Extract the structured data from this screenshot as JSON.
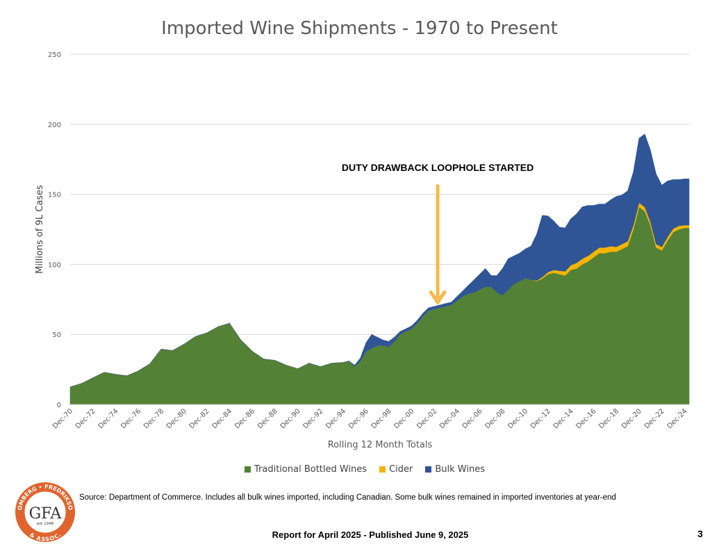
{
  "chart_data": {
    "type": "area",
    "stacked": true,
    "title": "Imported Wine Shipments - 1970 to Present",
    "xlabel": "Rolling 12 Month Totals",
    "ylabel": "Millions of 9L Cases",
    "ylim": [
      0,
      250
    ],
    "yticks": [
      0,
      50,
      100,
      150,
      200,
      250
    ],
    "grid": true,
    "legend_position": "bottom",
    "x_tick_labels": [
      "Dec-70",
      "Dec-72",
      "Dec-74",
      "Dec-76",
      "Dec-78",
      "Dec-80",
      "Dec-82",
      "Dec-84",
      "Dec-86",
      "Dec-88",
      "Dec-90",
      "Dec-92",
      "Dec-94",
      "Dec-96",
      "Dec-98",
      "Dec-00",
      "Dec-02",
      "Dec-04",
      "Dec-06",
      "Dec-08",
      "Dec-10",
      "Dec-12",
      "Dec-14",
      "Dec-16",
      "Dec-18",
      "Dec-20",
      "Dec-22",
      "Dec-24"
    ],
    "x": [
      1970.9,
      1971.9,
      1972.9,
      1973.9,
      1974.9,
      1975.9,
      1976.9,
      1977.9,
      1978.9,
      1979.9,
      1980.9,
      1981.9,
      1982.9,
      1983.9,
      1984.9,
      1985.9,
      1986.9,
      1987.9,
      1988.9,
      1989.9,
      1990.9,
      1991.9,
      1992.9,
      1993.9,
      1994.9,
      1995.4,
      1995.9,
      1996.4,
      1996.9,
      1997.4,
      1997.9,
      1998.4,
      1998.9,
      1999.4,
      1999.9,
      2000.4,
      2000.9,
      2001.4,
      2001.9,
      2002.4,
      2002.9,
      2003.4,
      2003.9,
      2004.4,
      2004.9,
      2005.4,
      2005.9,
      2006.4,
      2006.9,
      2007.4,
      2007.9,
      2008.4,
      2008.9,
      2009.4,
      2009.9,
      2010.4,
      2010.9,
      2011.4,
      2011.9,
      2012.4,
      2012.9,
      2013.4,
      2013.9,
      2014.4,
      2014.9,
      2015.4,
      2015.9,
      2016.4,
      2016.9,
      2017.4,
      2017.9,
      2018.4,
      2018.9,
      2019.4,
      2019.9,
      2020.4,
      2020.9,
      2021.4,
      2021.9,
      2022.4,
      2022.9,
      2023.4,
      2023.9,
      2024.4,
      2024.9,
      2025.3
    ],
    "series": [
      {
        "name": "Traditional Bottled Wines",
        "color": "#538135",
        "values": [
          12.5,
          15,
          19,
          23,
          21.5,
          20.5,
          24,
          29,
          39.5,
          38.5,
          43,
          48.5,
          51,
          55.5,
          58,
          46,
          38,
          32.5,
          31.5,
          28,
          25.5,
          29.5,
          27,
          29.5,
          30,
          31,
          27,
          31,
          38,
          40,
          42,
          42,
          41,
          45,
          50,
          52,
          54,
          58,
          63,
          67,
          68,
          69,
          70,
          71,
          74,
          77,
          79,
          80,
          82,
          84,
          84,
          80,
          78,
          82,
          86,
          88,
          90,
          89,
          88,
          90,
          93,
          94,
          93,
          92,
          96,
          97,
          100,
          102,
          105,
          108,
          108,
          109,
          109,
          111,
          113,
          125,
          141,
          138,
          128,
          112,
          110,
          117,
          123,
          125,
          126,
          126
        ],
        "ids": []
      },
      {
        "name": "Cider",
        "color": "#F4B400",
        "values": [
          0,
          0,
          0,
          0,
          0,
          0,
          0,
          0,
          0,
          0,
          0,
          0,
          0,
          0,
          0,
          0,
          0,
          0,
          0,
          0,
          0,
          0,
          0,
          0,
          0,
          0,
          0,
          0,
          0,
          0,
          0,
          0,
          0,
          0,
          0,
          0,
          0,
          0,
          0,
          0,
          0,
          0,
          0,
          0,
          0,
          0,
          0,
          0,
          0,
          0,
          0,
          0,
          0,
          0,
          0,
          0,
          0,
          0,
          0.5,
          1,
          1.5,
          2,
          2.5,
          3,
          3.5,
          4,
          4,
          4,
          4,
          4,
          4,
          4,
          3.5,
          3.5,
          3.5,
          3,
          3,
          3,
          2.5,
          2.5,
          2.5,
          2.5,
          2.5,
          2.5,
          2,
          2
        ]
      },
      {
        "name": "Bulk Wines",
        "color": "#2F5597",
        "values": [
          0,
          0,
          0,
          0,
          0,
          0,
          0,
          0,
          0,
          0,
          0,
          0,
          0,
          0,
          0,
          0,
          0,
          0,
          0,
          0,
          0,
          0,
          0,
          0,
          0,
          0,
          1,
          2,
          6,
          10,
          6,
          4,
          4,
          3,
          2,
          2,
          2,
          2,
          2,
          2,
          2,
          2,
          2,
          2,
          3,
          4,
          6,
          9,
          11,
          13,
          8,
          12,
          19,
          22,
          20,
          20,
          21,
          24,
          33,
          44,
          40,
          35,
          31,
          31,
          33,
          35,
          37,
          36,
          33,
          31,
          31,
          33,
          36,
          35,
          36,
          38,
          46,
          52,
          51,
          50,
          44,
          40,
          35,
          33,
          33,
          33
        ]
      }
    ],
    "annotation": {
      "text": "DUTY DRAWBACK LOOPHOLE STARTED",
      "x": 2003.2,
      "arrow_from_y": 157,
      "arrow_to_y": 73,
      "color": "#F6B94D"
    }
  },
  "source_note": "Source: Department of Commerce.  Includes all bulk wines imported, including Canadian.  Some bulk wines remained in imported inventories at year-end",
  "footer": "Report for April 2025 - Published June 9, 2025",
  "page_number": "3",
  "logo": {
    "text_top": "GOMBERG • FREDRIKSON",
    "text_bottom": "& ASSOC.",
    "monogram": "GFA",
    "est": "est 1948",
    "ring_color": "#E0642E"
  }
}
